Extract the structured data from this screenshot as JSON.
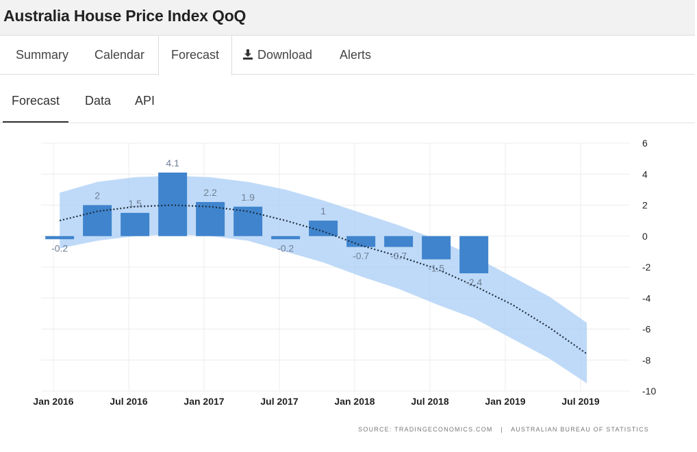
{
  "header": {
    "title": "Australia House Price Index QoQ"
  },
  "tabs": [
    {
      "label": "Summary"
    },
    {
      "label": "Calendar"
    },
    {
      "label": "Forecast"
    },
    {
      "label": "Download",
      "icon": "download-icon"
    },
    {
      "label": "Alerts"
    }
  ],
  "subtabs": [
    {
      "label": "Forecast"
    },
    {
      "label": "Data"
    },
    {
      "label": "API"
    }
  ],
  "source": {
    "label": "SOURCE:",
    "provider": "TRADINGECONOMICS.COM",
    "separator": "|",
    "origin": "AUSTRALIAN BUREAU OF STATISTICS"
  },
  "colors": {
    "bar": "#3f84cd",
    "band": "#aacdf5",
    "trend": "#1c2a3a",
    "label": "#6e7f94"
  },
  "chart_data": {
    "type": "bar",
    "title": "",
    "xlabel": "",
    "ylabel": "",
    "ylim": [
      -10,
      6
    ],
    "yticks": [
      6,
      4,
      2,
      0,
      -2,
      -4,
      -6,
      -8,
      -10
    ],
    "y_axis_side": "right",
    "grid": true,
    "xticks": [
      "Jan 2016",
      "Jul 2016",
      "Jan 2017",
      "Jul 2017",
      "Jan 2018",
      "Jul 2018",
      "Jan 2019",
      "Jul 2019"
    ],
    "series": [
      {
        "type": "bar",
        "dates": [
          "2016-03",
          "2016-06",
          "2016-09",
          "2016-12",
          "2017-03",
          "2017-06",
          "2017-09",
          "2017-12",
          "2018-03",
          "2018-06",
          "2018-09",
          "2018-12"
        ],
        "values": [
          -0.2,
          2,
          1.5,
          4.1,
          2.2,
          1.9,
          -0.2,
          1,
          -0.7,
          -0.7,
          -1.5,
          -2.4
        ],
        "labels": [
          "-0.2",
          "2",
          "1.5",
          "4.1",
          "2.2",
          "1.9",
          "-0.2",
          "1",
          "-0.7",
          "-0.7",
          "-1.5",
          "-2.4"
        ]
      },
      {
        "type": "line",
        "style": "dotted",
        "dates": [
          "2016-03",
          "2016-06",
          "2016-09",
          "2016-12",
          "2017-03",
          "2017-06",
          "2017-09",
          "2017-12",
          "2018-03",
          "2018-06",
          "2018-09",
          "2018-12",
          "2019-03",
          "2019-06",
          "2019-09"
        ],
        "values": [
          1.0,
          1.6,
          1.9,
          2.0,
          1.9,
          1.6,
          1.0,
          0.3,
          -0.6,
          -1.3,
          -2.1,
          -3.2,
          -4.4,
          -5.9,
          -7.6
        ]
      },
      {
        "type": "band",
        "dates": [
          "2016-03",
          "2016-06",
          "2016-09",
          "2016-12",
          "2017-03",
          "2017-06",
          "2017-09",
          "2017-12",
          "2018-03",
          "2018-06",
          "2018-09",
          "2018-12",
          "2019-03",
          "2019-06",
          "2019-09"
        ],
        "upper": [
          2.8,
          3.5,
          3.8,
          3.9,
          3.8,
          3.5,
          3.0,
          2.3,
          1.5,
          0.7,
          -0.2,
          -1.3,
          -2.6,
          -3.9,
          -5.6
        ],
        "lower": [
          -0.8,
          -0.3,
          0.0,
          0.1,
          0.0,
          -0.3,
          -1.0,
          -1.7,
          -2.6,
          -3.4,
          -4.4,
          -5.3,
          -6.6,
          -7.9,
          -9.5
        ]
      }
    ]
  }
}
